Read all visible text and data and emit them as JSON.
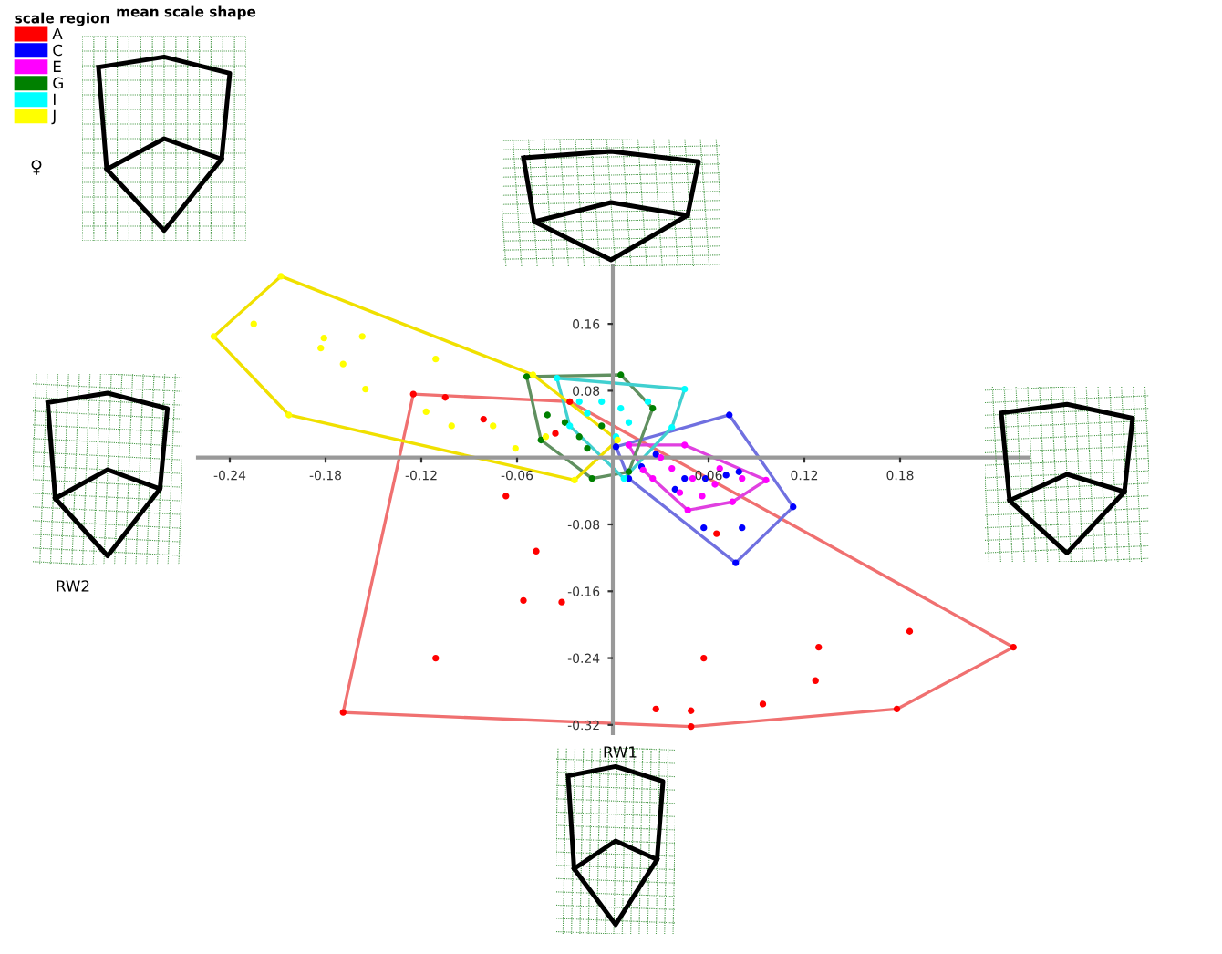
{
  "chart_data": {
    "type": "scatter",
    "xlabel": "RW1",
    "legend_title": "scale region",
    "legend": "top left",
    "marker": "circle",
    "grid": false,
    "annotations": [
      "mean scale shape",
      "♀",
      "RW2"
    ],
    "xlim": [
      -0.26,
      0.26
    ],
    "ylim": [
      -0.33,
      0.23
    ],
    "xticks": [
      -0.24,
      -0.18,
      -0.12,
      -0.06,
      0.06,
      0.12,
      0.18
    ],
    "yticks": [
      -0.32,
      -0.24,
      -0.16,
      -0.08,
      0.08,
      0.16
    ],
    "series": [
      {
        "name": "A",
        "color": "#ff0000",
        "x": [
          -0.125,
          -0.027,
          0.251,
          0.178,
          0.049,
          -0.169,
          -0.048,
          -0.056,
          -0.032,
          -0.111,
          0.057,
          0.129,
          0.186,
          0.127,
          0.049,
          0.027,
          0.094,
          -0.081,
          -0.067,
          -0.105,
          -0.036,
          0.065
        ],
        "values": [
          0.076,
          0.067,
          -0.227,
          -0.301,
          -0.322,
          -0.305,
          -0.112,
          -0.171,
          -0.173,
          -0.24,
          -0.24,
          -0.227,
          -0.208,
          -0.267,
          -0.303,
          -0.301,
          -0.295,
          0.046,
          -0.046,
          0.072,
          0.029,
          -0.091
        ]
      },
      {
        "name": "C",
        "color": "#0000ff",
        "x": [
          0.073,
          0.113,
          0.077,
          0.01,
          0.002,
          0.081,
          0.045,
          0.058,
          0.071,
          0.027,
          0.039,
          0.018,
          0.079,
          0.057
        ],
        "values": [
          0.051,
          -0.059,
          -0.126,
          -0.025,
          0.013,
          -0.084,
          -0.025,
          -0.025,
          -0.021,
          0.004,
          -0.038,
          -0.011,
          -0.017,
          -0.084
        ]
      },
      {
        "name": "E",
        "color": "#ff00ff",
        "x": [
          0.01,
          0.045,
          0.096,
          0.075,
          0.047,
          0.019,
          0.03,
          0.037,
          0.05,
          0.064,
          0.042,
          0.056,
          0.081,
          0.025,
          0.067
        ],
        "values": [
          0.015,
          0.015,
          -0.027,
          -0.053,
          -0.063,
          -0.015,
          0.0,
          -0.013,
          -0.025,
          -0.032,
          -0.042,
          -0.046,
          -0.025,
          -0.025,
          -0.013
        ]
      },
      {
        "name": "G",
        "color": "#008000",
        "x": [
          -0.054,
          0.005,
          0.025,
          0.01,
          -0.013,
          -0.045,
          -0.03,
          -0.021,
          -0.041,
          -0.016,
          -0.007
        ],
        "values": [
          0.097,
          0.099,
          0.059,
          -0.017,
          -0.025,
          0.021,
          0.042,
          0.025,
          0.051,
          0.011,
          0.038
        ]
      },
      {
        "name": "I",
        "color": "#00ffff",
        "x": [
          -0.035,
          0.045,
          0.037,
          0.007,
          -0.027,
          -0.016,
          -0.007,
          0.005,
          0.01,
          -0.021,
          0.022,
          0.002
        ],
        "values": [
          0.095,
          0.082,
          0.036,
          -0.025,
          0.038,
          0.053,
          0.067,
          0.059,
          0.042,
          0.067,
          0.067,
          0.025
        ]
      },
      {
        "name": "J",
        "color": "#ffff00",
        "x": [
          -0.208,
          -0.25,
          -0.203,
          -0.024,
          0.003,
          -0.05,
          -0.225,
          -0.181,
          -0.183,
          -0.157,
          -0.169,
          -0.155,
          -0.111,
          -0.117,
          -0.101,
          -0.075,
          -0.061,
          -0.042
        ],
        "values": [
          0.217,
          0.145,
          0.051,
          -0.027,
          0.021,
          0.099,
          0.16,
          0.143,
          0.131,
          0.145,
          0.112,
          0.082,
          0.118,
          0.055,
          0.038,
          0.038,
          0.011,
          0.025
        ]
      },
      {
        "type": "line",
        "marker": "none",
        "color": "#f07070",
        "x": [
          -0.169,
          -0.125,
          -0.027,
          0.251
        ],
        "values": [
          -0.305,
          0.076,
          0.067,
          -0.227
        ]
      },
      {
        "type": "line",
        "marker": "none",
        "color": "#f07070",
        "x": [
          -0.169,
          0.049,
          0.178,
          0.251
        ],
        "values": [
          -0.305,
          -0.322,
          -0.301,
          -0.227
        ]
      },
      {
        "type": "line",
        "marker": "none",
        "color": "#7070e0",
        "x": [
          0.002,
          0.073,
          0.113
        ],
        "values": [
          0.013,
          0.051,
          -0.059
        ]
      },
      {
        "type": "line",
        "marker": "none",
        "color": "#7070e0",
        "x": [
          0.002,
          0.01,
          0.077,
          0.113
        ],
        "values": [
          0.013,
          -0.025,
          -0.126,
          -0.059
        ]
      },
      {
        "type": "line",
        "marker": "none",
        "color": "#e040e0",
        "x": [
          0.01,
          0.045,
          0.096
        ],
        "values": [
          0.015,
          0.015,
          -0.027
        ]
      },
      {
        "type": "line",
        "marker": "none",
        "color": "#e040e0",
        "x": [
          0.01,
          0.019,
          0.047,
          0.075,
          0.096
        ],
        "values": [
          0.015,
          -0.015,
          -0.063,
          -0.053,
          -0.027
        ]
      },
      {
        "type": "line",
        "marker": "none",
        "color": "#609060",
        "x": [
          -0.054,
          0.005,
          0.025
        ],
        "values": [
          0.097,
          0.099,
          0.059
        ]
      },
      {
        "type": "line",
        "marker": "none",
        "color": "#609060",
        "x": [
          -0.054,
          -0.045,
          -0.013,
          0.01,
          0.025
        ],
        "values": [
          0.097,
          0.021,
          -0.025,
          -0.017,
          0.059
        ]
      },
      {
        "type": "line",
        "marker": "none",
        "color": "#40d0d0",
        "x": [
          -0.035,
          0.045
        ],
        "values": [
          0.095,
          0.082
        ]
      },
      {
        "type": "line",
        "marker": "none",
        "color": "#40d0d0",
        "x": [
          -0.035,
          -0.027,
          0.007,
          0.037,
          0.045
        ],
        "values": [
          0.095,
          0.038,
          -0.025,
          0.036,
          0.082
        ]
      },
      {
        "type": "line",
        "marker": "none",
        "color": "#f0e000",
        "x": [
          -0.25,
          -0.208,
          -0.05,
          0.003
        ],
        "values": [
          0.145,
          0.217,
          0.099,
          0.021
        ]
      },
      {
        "type": "line",
        "marker": "none",
        "color": "#f0e000",
        "x": [
          -0.25,
          -0.203,
          -0.024,
          0.003
        ],
        "values": [
          0.145,
          0.051,
          -0.027,
          0.021
        ]
      }
    ]
  }
}
